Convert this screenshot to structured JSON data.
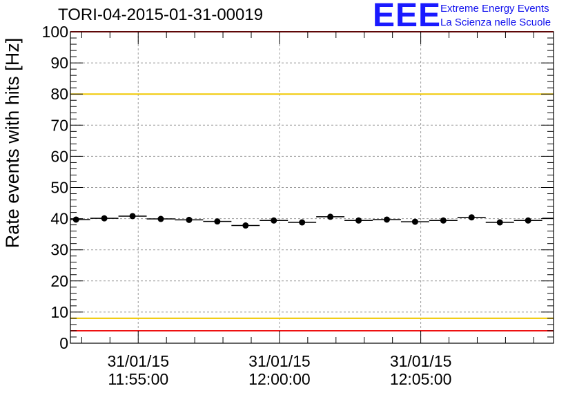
{
  "chart_data": {
    "type": "scatter",
    "title": "TORI-04-2015-01-31-00019",
    "xlabel": "",
    "ylabel": "Rate events with hits [Hz]",
    "ylim": [
      0,
      100
    ],
    "yticks": [
      0,
      10,
      20,
      30,
      40,
      50,
      60,
      70,
      80,
      90,
      100
    ],
    "xlim_minutes": [
      -7.4,
      9.7
    ],
    "xticks": [
      {
        "minute": -5,
        "date": "31/01/15",
        "time": "11:55:00"
      },
      {
        "minute": 0,
        "date": "31/01/15",
        "time": "12:00:00"
      },
      {
        "minute": 5,
        "date": "31/01/15",
        "time": "12:05:00"
      }
    ],
    "bin_width_minutes": 1,
    "series": [
      {
        "name": "rate",
        "x_minutes": [
          -7.2,
          -6.2,
          -5.2,
          -4.2,
          -3.2,
          -2.2,
          -1.2,
          -0.2,
          0.8,
          1.8,
          2.8,
          3.8,
          4.8,
          5.8,
          6.8,
          7.8,
          8.8,
          9.8
        ],
        "values": [
          39.7,
          40.1,
          40.8,
          39.9,
          39.6,
          39.1,
          37.8,
          39.4,
          38.8,
          40.6,
          39.4,
          39.7,
          39.0,
          39.4,
          40.4,
          38.8,
          39.4,
          40.1
        ]
      }
    ],
    "reference_lines": [
      {
        "name": "upper-red",
        "y": 100,
        "color": "#ee1111"
      },
      {
        "name": "upper-yellow",
        "y": 80,
        "color": "#f0c800"
      },
      {
        "name": "lower-yellow",
        "y": 8,
        "color": "#f0c800"
      },
      {
        "name": "lower-red",
        "y": 4,
        "color": "#ee1111"
      }
    ]
  },
  "logo": {
    "mark": "EEE",
    "line1": "Extreme Energy Events",
    "line2": "La Scienza nelle Scuole"
  }
}
